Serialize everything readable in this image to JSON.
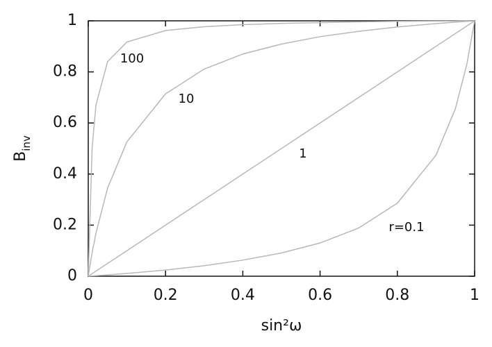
{
  "chart_data": {
    "type": "line",
    "x_label": "sin²ω",
    "y_label": "B",
    "y_label_sub": "inv",
    "x": [
      0,
      0.01,
      0.02,
      0.05,
      0.1,
      0.2,
      0.3,
      0.4,
      0.5,
      0.6,
      0.7,
      0.8,
      0.9,
      0.95,
      0.98,
      1
    ],
    "series": [
      {
        "name": "100",
        "color": "#b8b8b8",
        "values": [
          0,
          0.503,
          0.671,
          0.84,
          0.917,
          0.962,
          0.977,
          0.985,
          0.99,
          0.993,
          0.996,
          0.998,
          0.999,
          0.999,
          1.0,
          1
        ]
      },
      {
        "name": "10",
        "color": "#b8b8b8",
        "values": [
          0,
          0.092,
          0.169,
          0.345,
          0.526,
          0.714,
          0.811,
          0.87,
          0.909,
          0.938,
          0.959,
          0.976,
          0.989,
          0.995,
          0.998,
          1
        ]
      },
      {
        "name": "1",
        "color": "#b8b8b8",
        "values": [
          0,
          0.01,
          0.02,
          0.05,
          0.1,
          0.2,
          0.3,
          0.4,
          0.5,
          0.6,
          0.7,
          0.8,
          0.9,
          0.95,
          0.98,
          1
        ]
      },
      {
        "name": "r=0.1",
        "color": "#b8b8b8",
        "values": [
          0,
          0.001,
          0.002,
          0.005,
          0.011,
          0.024,
          0.041,
          0.063,
          0.091,
          0.13,
          0.189,
          0.286,
          0.474,
          0.655,
          0.831,
          1
        ]
      }
    ],
    "xlim": [
      0,
      1
    ],
    "ylim": [
      0,
      1
    ],
    "xticks": [
      0,
      0.2,
      0.4,
      0.6,
      0.8,
      1
    ],
    "yticks": [
      0,
      0.2,
      0.4,
      0.6,
      0.8,
      1
    ]
  }
}
